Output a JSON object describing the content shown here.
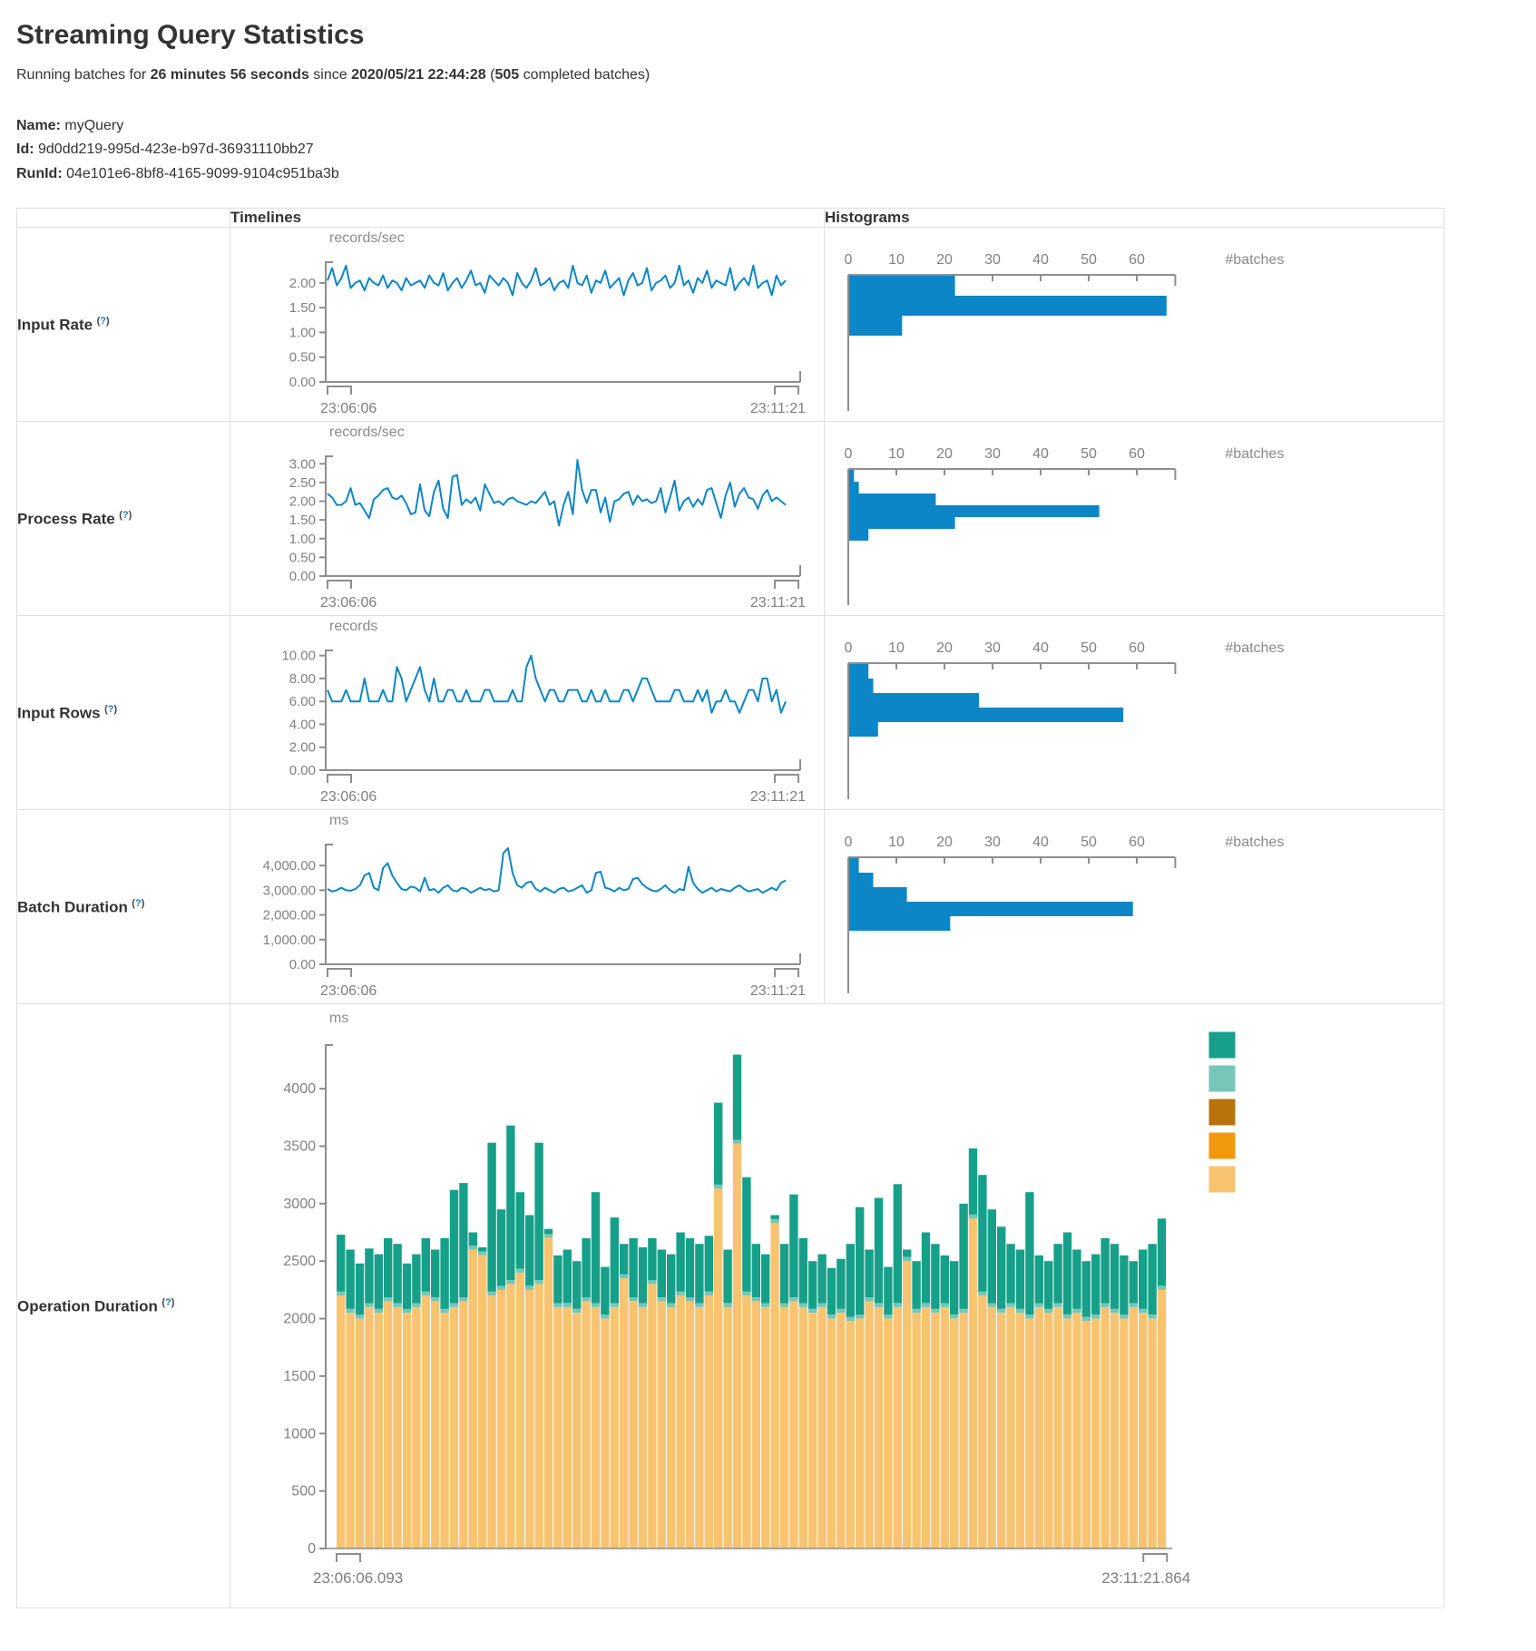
{
  "page": {
    "title": "Streaming Query Statistics",
    "running_prefix": "Running batches for ",
    "duration": "26 minutes 56 seconds",
    "since_word": " since ",
    "start_time": "2020/05/21 22:44:28",
    "paren_open": " (",
    "completed_batches": "505",
    "completed_suffix": " completed batches)",
    "name_label": "Name:",
    "name_value": "myQuery",
    "id_label": "Id:",
    "id_value": "9d0dd219-995d-423e-b97d-36931110bb27",
    "runid_label": "RunId:",
    "runid_value": "04e101e6-8bf8-4165-9099-9104c951ba3b"
  },
  "table": {
    "header": {
      "timelines": "Timelines",
      "histograms": "Histograms"
    },
    "hint": {
      "open": "(",
      "q": "?",
      "close": ")"
    },
    "rows": [
      {
        "label": "Input Rate"
      },
      {
        "label": "Process Rate"
      },
      {
        "label": "Input Rows"
      },
      {
        "label": "Batch Duration"
      },
      {
        "label": "Operation Duration"
      }
    ]
  },
  "colors": {
    "accent_blue": "#0c86c6",
    "axis_gray": "#8e8e8e",
    "tick_text": "#808080",
    "label_text": "#7e7e7e",
    "unit_text": "#8a8a8a",
    "border": "#e0e0e0",
    "stack_base_tan": "#f8c471",
    "stack_mid_lightteal": "#76c7b7",
    "stack_top_teal": "#17a089",
    "legend_dark_orange": "#b8730c",
    "legend_orange": "#f2980d"
  },
  "chart_data": [
    {
      "id": "input-rate",
      "timeline": {
        "type": "line",
        "unit": "records/sec",
        "x_start": "23:06:06",
        "x_end": "23:11:21",
        "y_tick_values": [
          0,
          0.5,
          1,
          1.5,
          2
        ],
        "y_tick_labels": [
          "0.00",
          "0.50",
          "1.00",
          "1.50",
          "2.00"
        ],
        "y_max": 2.42,
        "values": [
          2.05,
          2.3,
          1.95,
          2.1,
          2.35,
          1.9,
          2.0,
          2.05,
          1.85,
          2.1,
          2.0,
          1.95,
          2.15,
          1.9,
          2.05,
          2.0,
          1.85,
          2.1,
          1.95,
          2.0,
          2.05,
          1.9,
          2.15,
          2.0,
          1.95,
          2.2,
          1.85,
          2.0,
          2.1,
          1.9,
          2.05,
          2.25,
          1.95,
          2.0,
          1.8,
          2.15,
          2.05,
          1.95,
          2.1,
          2.0,
          1.75,
          2.2,
          2.0,
          1.9,
          2.05,
          2.3,
          1.95,
          2.0,
          2.1,
          1.85,
          2.0,
          2.05,
          1.9,
          2.35,
          2.0,
          1.95,
          2.15,
          1.8,
          2.05,
          2.0,
          2.25,
          1.9,
          2.0,
          2.1,
          1.75,
          2.05,
          2.2,
          1.95,
          2.0,
          2.3,
          1.85,
          2.0,
          2.05,
          2.15,
          1.9,
          2.0,
          2.35,
          1.95,
          2.05,
          1.8,
          2.1,
          2.0,
          2.25,
          1.9,
          2.05,
          2.0,
          1.95,
          2.3,
          1.85,
          2.0,
          2.1,
          1.95,
          2.35,
          1.9,
          2.0,
          2.05,
          1.75,
          2.15,
          1.95,
          2.05
        ]
      },
      "histogram": {
        "type": "bar",
        "xlabel": "#batches",
        "x_tick_values": [
          0,
          10,
          20,
          30,
          40,
          50,
          60
        ],
        "x_axis_max": 68,
        "bar_thickness": 22,
        "values": [
          22,
          66,
          11
        ]
      }
    },
    {
      "id": "process-rate",
      "timeline": {
        "type": "line",
        "unit": "records/sec",
        "x_start": "23:06:06",
        "x_end": "23:11:21",
        "y_tick_values": [
          0,
          0.5,
          1,
          1.5,
          2,
          2.5,
          3
        ],
        "y_tick_labels": [
          "0.00",
          "0.50",
          "1.00",
          "1.50",
          "2.00",
          "2.50",
          "3.00"
        ],
        "y_max": 3.2,
        "values": [
          2.2,
          2.1,
          1.9,
          1.9,
          2.0,
          2.35,
          1.9,
          1.95,
          1.75,
          1.55,
          2.05,
          2.15,
          2.3,
          2.35,
          2.1,
          2.05,
          2.15,
          1.95,
          1.65,
          1.7,
          2.45,
          1.75,
          1.6,
          2.25,
          2.55,
          1.8,
          1.55,
          2.65,
          2.7,
          1.9,
          2.05,
          1.95,
          2.1,
          1.75,
          2.45,
          2.2,
          1.95,
          2.0,
          1.9,
          2.05,
          2.1,
          2.0,
          1.95,
          1.9,
          2.0,
          1.95,
          2.1,
          2.25,
          1.9,
          2.0,
          1.35,
          1.9,
          2.25,
          1.65,
          3.1,
          2.3,
          1.95,
          2.3,
          2.3,
          1.7,
          2.1,
          1.45,
          2.0,
          2.05,
          2.2,
          2.25,
          1.9,
          2.15,
          2.0,
          2.05,
          1.95,
          2.0,
          2.35,
          1.7,
          2.1,
          2.55,
          1.75,
          2.0,
          2.1,
          1.85,
          2.05,
          1.9,
          2.3,
          2.35,
          1.95,
          1.55,
          2.15,
          2.5,
          1.85,
          2.2,
          2.35,
          2.1,
          2.05,
          1.8,
          2.15,
          2.3,
          2.0,
          2.1,
          2.0,
          1.9
        ]
      },
      "histogram": {
        "type": "bar",
        "xlabel": "#batches",
        "x_tick_values": [
          0,
          10,
          20,
          30,
          40,
          50,
          60
        ],
        "x_axis_max": 68,
        "bar_thickness": 13,
        "values": [
          1,
          2,
          18,
          52,
          22,
          4
        ]
      }
    },
    {
      "id": "input-rows",
      "timeline": {
        "type": "line",
        "unit": "records",
        "x_start": "23:06:06",
        "x_end": "23:11:21",
        "y_tick_values": [
          0,
          2,
          4,
          6,
          8,
          10
        ],
        "y_tick_labels": [
          "0.00",
          "2.00",
          "4.00",
          "6.00",
          "8.00",
          "10.00"
        ],
        "y_max": 10.45,
        "values": [
          7,
          6,
          6,
          6,
          7,
          6,
          6,
          6,
          8,
          6,
          6,
          6,
          7,
          6,
          6,
          9,
          8,
          6,
          7,
          8,
          9,
          7,
          6,
          8,
          6,
          6,
          7,
          7,
          6,
          6,
          7,
          6,
          6,
          6,
          7,
          7,
          6,
          6,
          6,
          6,
          7,
          6,
          6,
          9,
          10,
          8,
          7,
          6,
          7,
          7,
          6,
          6,
          7,
          7,
          7,
          6,
          6,
          7,
          6,
          6,
          7,
          6,
          6,
          6,
          7,
          7,
          6,
          7,
          8,
          8,
          7,
          6,
          6,
          6,
          6,
          7,
          7,
          6,
          6,
          6,
          7,
          6,
          7,
          5,
          6,
          6,
          7,
          6,
          6,
          5,
          6,
          7,
          7,
          6,
          8,
          8,
          6,
          7,
          5,
          6
        ]
      },
      "histogram": {
        "type": "bar",
        "xlabel": "#batches",
        "x_tick_values": [
          0,
          10,
          20,
          30,
          40,
          50,
          60
        ],
        "x_axis_max": 68,
        "bar_thickness": 16,
        "values": [
          4,
          5,
          27,
          57,
          6
        ]
      }
    },
    {
      "id": "batch-duration",
      "timeline": {
        "type": "line",
        "unit": "ms",
        "x_start": "23:06:06",
        "x_end": "23:11:21",
        "y_tick_values": [
          0,
          1000,
          2000,
          3000,
          4000
        ],
        "y_tick_labels": [
          "0.00",
          "1,000.00",
          "2,000.00",
          "3,000.00",
          "4,000.00"
        ],
        "y_max": 4850,
        "values": [
          3050,
          2950,
          3000,
          3100,
          3000,
          2980,
          3050,
          3200,
          3600,
          3700,
          3100,
          3000,
          3900,
          4100,
          3600,
          3300,
          3050,
          3000,
          3150,
          3100,
          2950,
          3500,
          3000,
          3050,
          2900,
          3100,
          3200,
          3000,
          2950,
          3100,
          3050,
          2900,
          3000,
          3100,
          3000,
          3050,
          2950,
          3000,
          4500,
          4700,
          3700,
          3200,
          3100,
          3300,
          3350,
          3050,
          2950,
          3100,
          3000,
          2900,
          3050,
          3100,
          2950,
          3000,
          3100,
          3200,
          2900,
          3000,
          3700,
          3750,
          3100,
          3050,
          2950,
          3100,
          3000,
          3050,
          3450,
          3500,
          3250,
          3100,
          3000,
          2950,
          3050,
          3200,
          3000,
          2900,
          3050,
          3000,
          3950,
          3300,
          3050,
          2900,
          3000,
          3100,
          2950,
          3050,
          3000,
          2950,
          3100,
          3200,
          3050,
          2950,
          3000,
          3050,
          2900,
          3000,
          3100,
          3000,
          3300,
          3400
        ]
      },
      "histogram": {
        "type": "bar",
        "xlabel": "#batches",
        "x_tick_values": [
          0,
          10,
          20,
          30,
          40,
          50,
          60
        ],
        "x_axis_max": 68,
        "bar_thickness": 16,
        "values": [
          2,
          5,
          12,
          59,
          21
        ]
      }
    },
    {
      "id": "operation-duration",
      "timeline": {
        "type": "stacked-bar",
        "unit": "ms",
        "x_start": "23:06:06.093",
        "x_end": "23:11:21.864",
        "y_tick_values": [
          0,
          500,
          1000,
          1500,
          2000,
          2500,
          3000,
          3500,
          4000
        ],
        "y_tick_labels": [
          "0",
          "500",
          "1000",
          "1500",
          "2000",
          "2500",
          "3000",
          "3500",
          "4000"
        ],
        "y_max": 4380,
        "mid_value": 35,
        "base_values": [
          2200,
          2050,
          2000,
          2100,
          2050,
          2150,
          2100,
          2050,
          2100,
          2200,
          2150,
          2050,
          2100,
          2150,
          2600,
          2550,
          2200,
          2250,
          2300,
          2400,
          2250,
          2300,
          2700,
          2100,
          2100,
          2050,
          2150,
          2100,
          2000,
          2100,
          2350,
          2150,
          2100,
          2300,
          2150,
          2100,
          2200,
          2150,
          2100,
          2200,
          3130,
          2100,
          3520,
          2200,
          2150,
          2100,
          2830,
          2100,
          2150,
          2100,
          2050,
          2100,
          2000,
          2050,
          1980,
          2000,
          2150,
          2100,
          2000,
          2100,
          2500,
          2050,
          2100,
          2050,
          2100,
          2000,
          2050,
          2870,
          2200,
          2100,
          2050,
          2100,
          2050,
          2000,
          2100,
          2050,
          2100,
          2000,
          2050,
          1980,
          2000,
          2100,
          2050,
          2000,
          2100,
          2050,
          2000,
          2250
        ],
        "total_values": [
          2730,
          2600,
          2480,
          2610,
          2560,
          2700,
          2650,
          2480,
          2560,
          2700,
          2600,
          2700,
          3120,
          3180,
          2750,
          2620,
          3530,
          2950,
          3680,
          3100,
          2900,
          3530,
          2780,
          2550,
          2600,
          2500,
          2700,
          3100,
          2450,
          2880,
          2650,
          2700,
          2620,
          2700,
          2600,
          2560,
          2750,
          2700,
          2650,
          2720,
          3878,
          2600,
          4296,
          3230,
          2650,
          2560,
          2900,
          2650,
          3080,
          2700,
          2500,
          2560,
          2440,
          2520,
          2650,
          2970,
          2600,
          3050,
          2450,
          3170,
          2600,
          2500,
          2750,
          2650,
          2550,
          2500,
          3000,
          3480,
          3250,
          2950,
          2800,
          2650,
          2600,
          3100,
          2550,
          2500,
          2650,
          2750,
          2600,
          2500,
          2560,
          2700,
          2650,
          2550,
          2500,
          2600,
          2650,
          2870
        ]
      },
      "legend": {
        "swatch_colors": [
          "#17a089",
          "#76c7b7",
          "#b8730c",
          "#f2980d",
          "#f8c471"
        ]
      }
    }
  ]
}
